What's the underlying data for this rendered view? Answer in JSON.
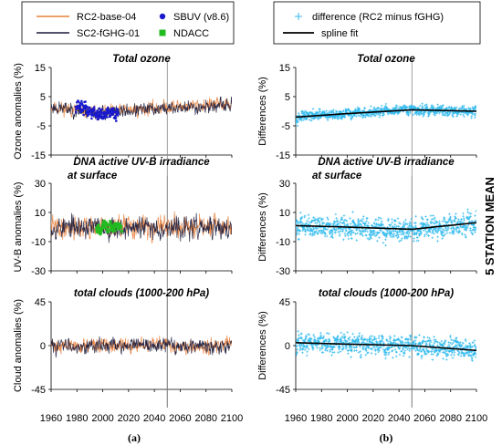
{
  "colors": {
    "rc2_base": "#e8803a",
    "sc2_fghg": "#1a1a3a",
    "sbuv": "#1a1acc",
    "ndacc": "#22bb22",
    "difference": "#33bbee",
    "spline": "#000000",
    "refline": "#888888"
  },
  "legends": {
    "a": [
      {
        "label": "RC2-base-04",
        "style": "line",
        "color": "#e8803a"
      },
      {
        "label": "SBUV (v8.6)",
        "style": "dot",
        "color": "#1a1acc"
      },
      {
        "label": "SC2-fGHG-01",
        "style": "line",
        "color": "#1a1a3a"
      },
      {
        "label": "NDACC",
        "style": "square",
        "color": "#22bb22"
      }
    ],
    "b": [
      {
        "label": "difference (RC2 minus fGHG)",
        "style": "plus",
        "color": "#33bbee"
      },
      {
        "label": "spline fit",
        "style": "line",
        "color": "#000000"
      }
    ]
  },
  "side_label": "5 STATION MEAN",
  "sublabels": {
    "a": "(a)",
    "b": "(b)"
  },
  "chart_data": [
    {
      "id": "a1",
      "type": "line",
      "title": "Total ozone",
      "ylabel": "Ozone anomalies (%)",
      "xlim": [
        1960,
        2100
      ],
      "ylim": [
        -15,
        15
      ],
      "yticks": [
        -15,
        -5,
        5,
        15
      ],
      "xticks": [
        1960,
        1980,
        2000,
        2020,
        2040,
        2060,
        2080,
        2100
      ],
      "refline_x": 2050,
      "series": [
        {
          "name": "RC2-base-04",
          "kind": "line",
          "color": "#e8803a",
          "x_start": 1960,
          "x_end": 2100,
          "trend": [
            [
              1960,
              1.5
            ],
            [
              1985,
              0
            ],
            [
              2000,
              -0.5
            ],
            [
              2050,
              1.5
            ],
            [
              2100,
              2.5
            ]
          ],
          "noise": 2.0,
          "seed": 11
        },
        {
          "name": "SC2-fGHG-01",
          "kind": "line",
          "color": "#1a1a3a",
          "x_start": 1960,
          "x_end": 2100,
          "trend": [
            [
              1960,
              1.5
            ],
            [
              1985,
              0
            ],
            [
              2000,
              -0.5
            ],
            [
              2050,
              1.0
            ],
            [
              2100,
              2.0
            ]
          ],
          "noise": 2.0,
          "seed": 23
        },
        {
          "name": "SBUV (v8.6)",
          "kind": "dots",
          "color": "#1a1acc",
          "x_start": 1979,
          "x_end": 2012,
          "trend": [
            [
              1979,
              2.5
            ],
            [
              1992,
              -0.5
            ],
            [
              2000,
              -1.5
            ],
            [
              2012,
              -0.5
            ]
          ],
          "noise": 2.0,
          "seed": 37
        }
      ]
    },
    {
      "id": "a2",
      "type": "line",
      "title": "DNA active UV-B irradiance",
      "title2": "at surface",
      "ylabel": "UV-B anomalies (%)",
      "xlim": [
        1960,
        2100
      ],
      "ylim": [
        -30,
        30
      ],
      "yticks": [
        -30,
        -10,
        10,
        30
      ],
      "xticks": [
        1960,
        1980,
        2000,
        2020,
        2040,
        2060,
        2080,
        2100
      ],
      "refline_x": 2050,
      "series": [
        {
          "name": "RC2-base-04",
          "kind": "line",
          "color": "#e8803a",
          "x_start": 1960,
          "x_end": 2100,
          "trend": [
            [
              1960,
              0
            ],
            [
              2100,
              0
            ]
          ],
          "noise": 6.5,
          "seed": 41
        },
        {
          "name": "SC2-fGHG-01",
          "kind": "line",
          "color": "#1a1a3a",
          "x_start": 1960,
          "x_end": 2100,
          "trend": [
            [
              1960,
              0
            ],
            [
              2100,
              -1
            ]
          ],
          "noise": 6.5,
          "seed": 53
        },
        {
          "name": "NDACC",
          "kind": "squares",
          "color": "#22bb22",
          "x_start": 1995,
          "x_end": 2015,
          "trend": [
            [
              1995,
              0
            ],
            [
              2015,
              0
            ]
          ],
          "noise": 3.5,
          "seed": 67
        }
      ]
    },
    {
      "id": "a3",
      "type": "line",
      "title": "total clouds (1000-200 hPa)",
      "ylabel": "Cloud anomalies (%)",
      "xlim": [
        1960,
        2100
      ],
      "ylim": [
        -45,
        45
      ],
      "yticks": [
        -45,
        0,
        45
      ],
      "xticks": [
        1960,
        1980,
        2000,
        2020,
        2040,
        2060,
        2080,
        2100
      ],
      "refline_x": 2050,
      "series": [
        {
          "name": "RC2-base-04",
          "kind": "line",
          "color": "#e8803a",
          "x_start": 1960,
          "x_end": 2100,
          "trend": [
            [
              1960,
              0
            ],
            [
              2100,
              0
            ]
          ],
          "noise": 6.5,
          "seed": 71
        },
        {
          "name": "SC2-fGHG-01",
          "kind": "line",
          "color": "#1a1a3a",
          "x_start": 1960,
          "x_end": 2100,
          "trend": [
            [
              1960,
              0
            ],
            [
              2100,
              0
            ]
          ],
          "noise": 6.5,
          "seed": 83
        }
      ]
    },
    {
      "id": "b1",
      "type": "scatter",
      "title": "Total ozone",
      "ylabel": "Differences (%)",
      "xlim": [
        1960,
        2100
      ],
      "ylim": [
        -15,
        15
      ],
      "yticks": [
        -15,
        -5,
        5,
        15
      ],
      "xticks": [
        1960,
        1980,
        2000,
        2020,
        2040,
        2060,
        2080,
        2100
      ],
      "refline_x": 2050,
      "series": [
        {
          "name": "difference (RC2 minus fGHG)",
          "kind": "plus",
          "color": "#33bbee",
          "x_start": 1960,
          "x_end": 2100,
          "trend": [
            [
              1960,
              -2
            ],
            [
              2050,
              0.5
            ],
            [
              2100,
              0
            ]
          ],
          "noise": 1.5,
          "seed": 97
        },
        {
          "name": "spline fit",
          "kind": "fit",
          "color": "#000000",
          "points": [
            [
              1960,
              -2
            ],
            [
              2000,
              -0.8
            ],
            [
              2050,
              0.5
            ],
            [
              2100,
              0
            ]
          ]
        }
      ]
    },
    {
      "id": "b2",
      "type": "scatter",
      "title": "DNA active UV-B irradiance",
      "title2": "at surface",
      "ylabel": "Differences (%)",
      "xlim": [
        1960,
        2100
      ],
      "ylim": [
        -30,
        30
      ],
      "yticks": [
        -30,
        -10,
        10,
        30
      ],
      "xticks": [
        1960,
        1980,
        2000,
        2020,
        2040,
        2060,
        2080,
        2100
      ],
      "refline_x": 2050,
      "series": [
        {
          "name": "difference (RC2 minus fGHG)",
          "kind": "plus",
          "color": "#33bbee",
          "x_start": 1960,
          "x_end": 2100,
          "trend": [
            [
              1960,
              1
            ],
            [
              2050,
              -1.5
            ],
            [
              2100,
              3
            ]
          ],
          "noise": 6.5,
          "seed": 101
        },
        {
          "name": "spline fit",
          "kind": "fit",
          "color": "#000000",
          "points": [
            [
              1960,
              1
            ],
            [
              2000,
              0
            ],
            [
              2050,
              -1.5
            ],
            [
              2100,
              3
            ]
          ]
        }
      ]
    },
    {
      "id": "b3",
      "type": "scatter",
      "title": "total clouds (1000-200 hPa)",
      "ylabel": "Differences (%)",
      "xlim": [
        1960,
        2100
      ],
      "ylim": [
        -45,
        45
      ],
      "yticks": [
        -45,
        0,
        45
      ],
      "xticks": [
        1960,
        1980,
        2000,
        2020,
        2040,
        2060,
        2080,
        2100
      ],
      "refline_x": 2050,
      "series": [
        {
          "name": "difference (RC2 minus fGHG)",
          "kind": "plus",
          "color": "#33bbee",
          "x_start": 1960,
          "x_end": 2100,
          "trend": [
            [
              1960,
              3
            ],
            [
              2050,
              0
            ],
            [
              2100,
              -5
            ]
          ],
          "noise": 9,
          "seed": 113
        },
        {
          "name": "spline fit",
          "kind": "fit",
          "color": "#000000",
          "points": [
            [
              1960,
              3
            ],
            [
              2000,
              1.5
            ],
            [
              2050,
              0
            ],
            [
              2100,
              -5
            ]
          ]
        }
      ]
    }
  ]
}
